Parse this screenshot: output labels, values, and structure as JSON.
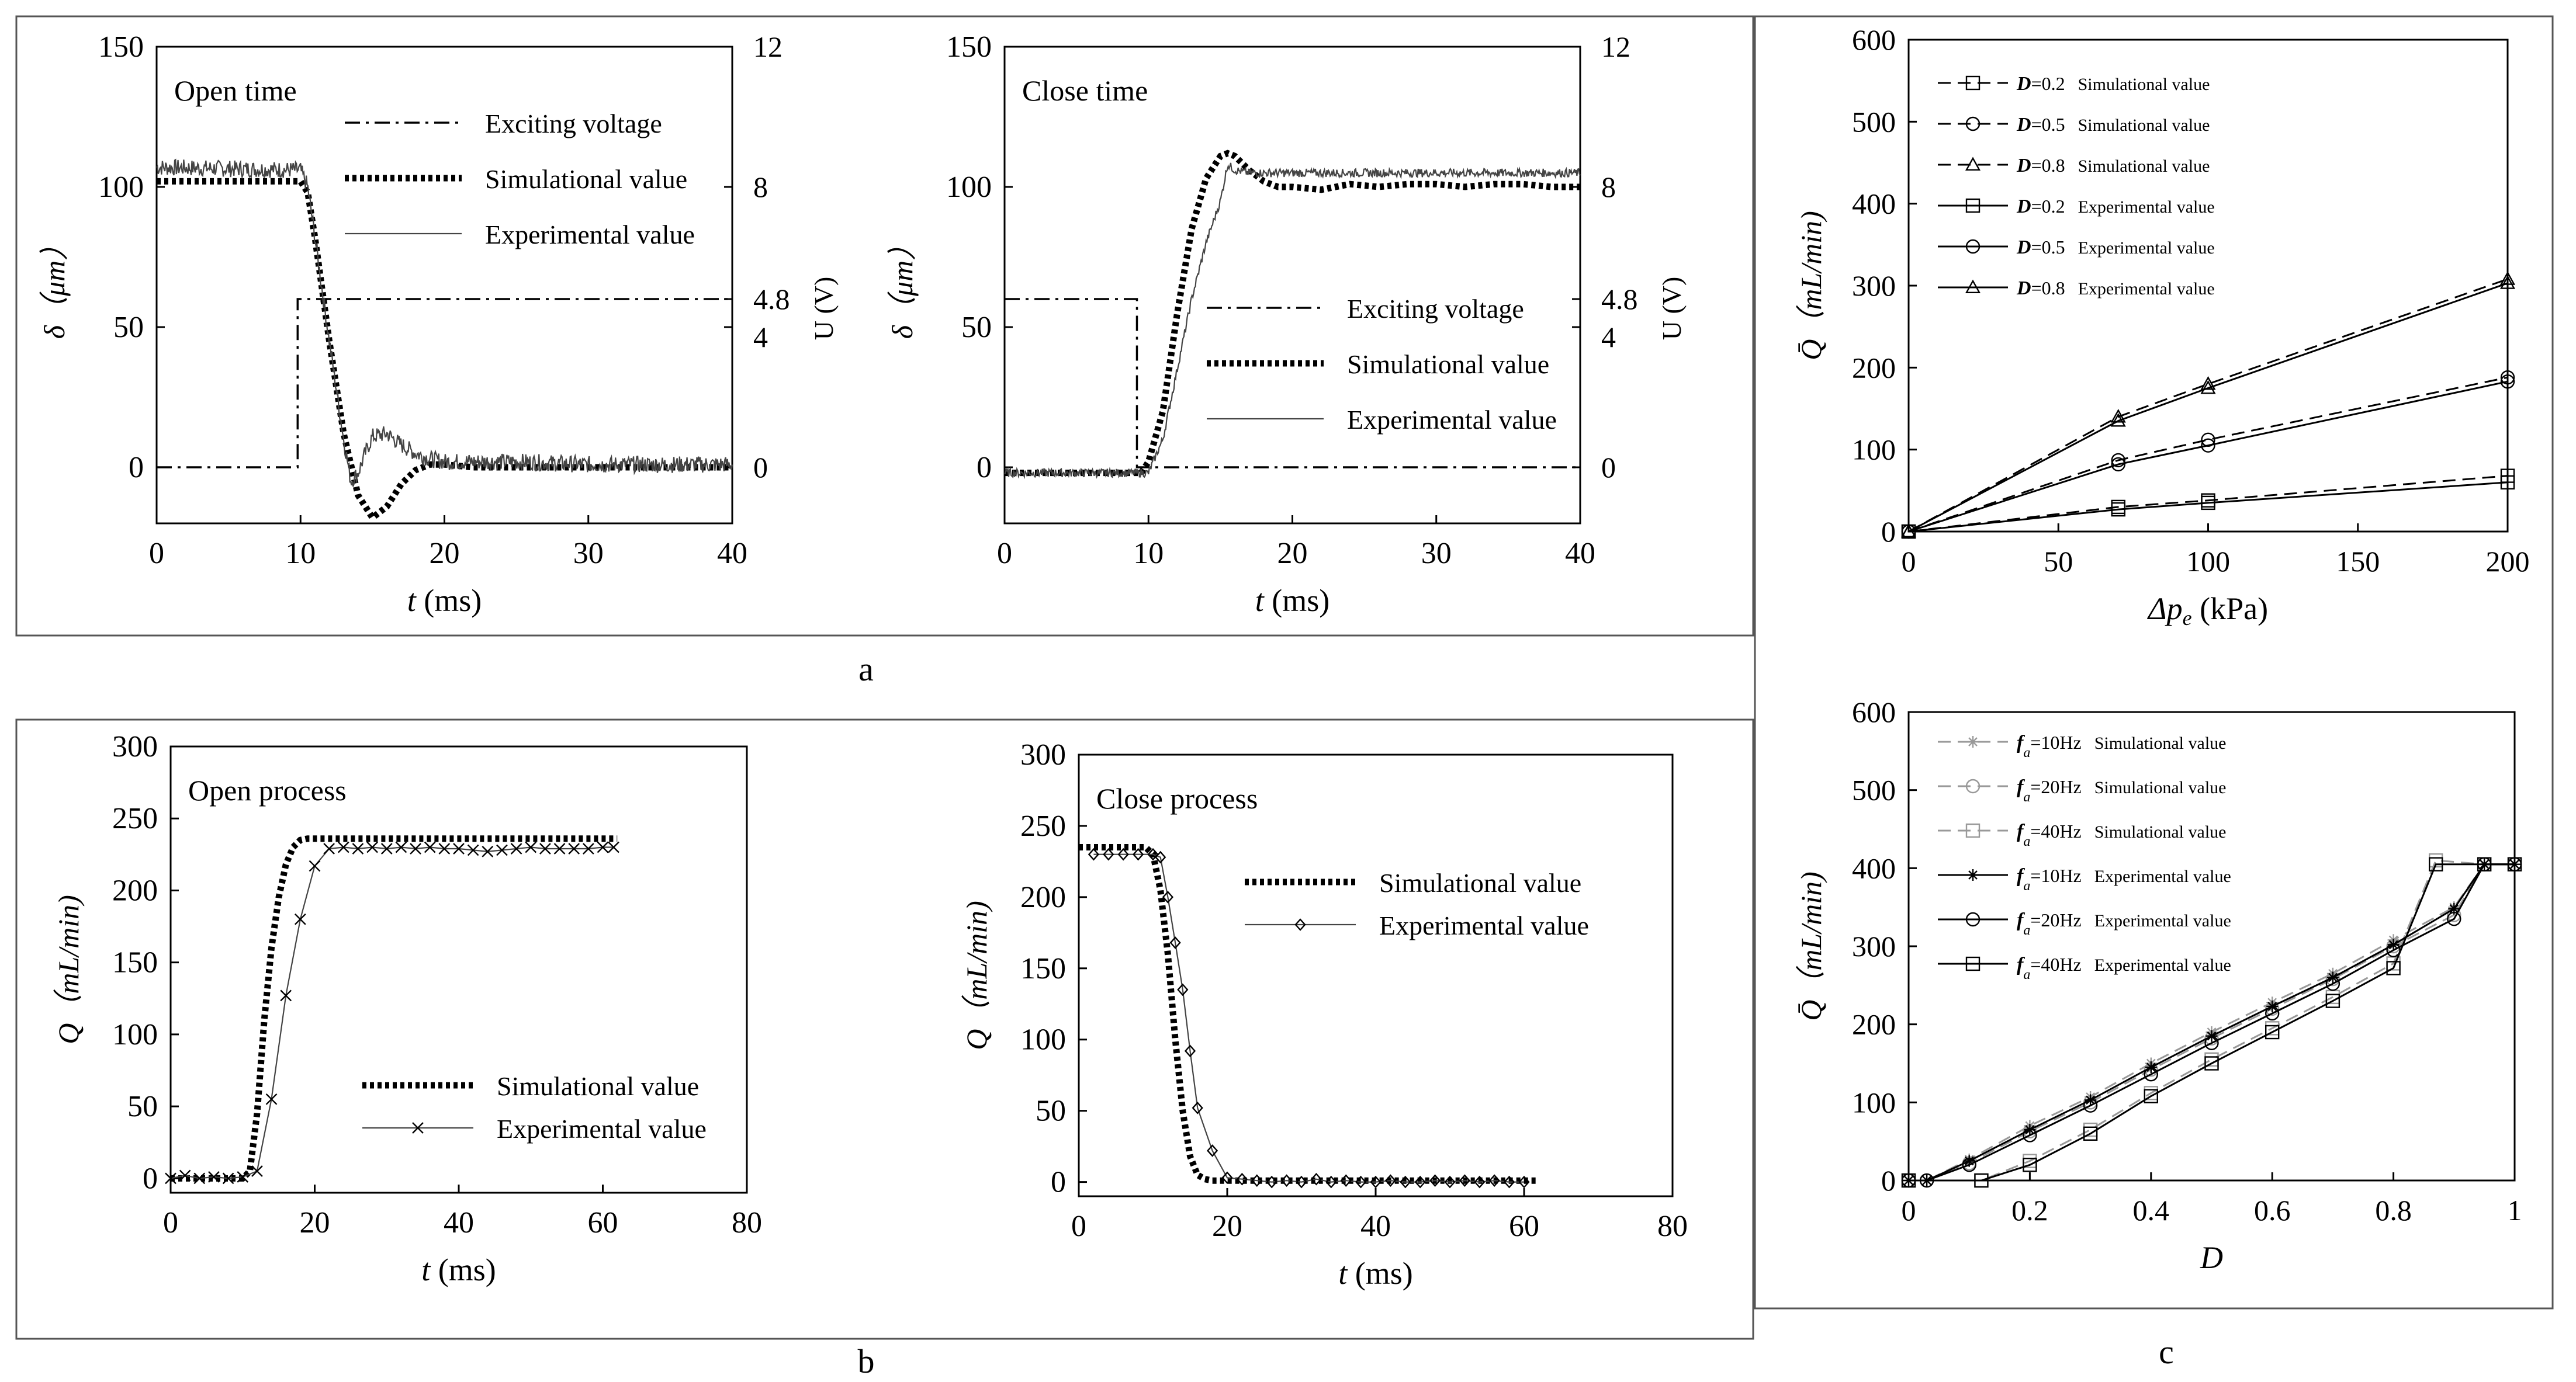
{
  "panel_labels": {
    "a": "a",
    "b": "b",
    "c": "c"
  },
  "colors": {
    "ink": "#000000",
    "light": "#999999",
    "frame": "#555555"
  },
  "chart_data": [
    {
      "id": "a1",
      "type": "line",
      "title": "Open time",
      "xlabel_main": "t",
      "xlabel_unit": " (ms)",
      "ylabel": "δ（μm）",
      "y2label": "U (V)",
      "xlim": [
        0,
        40
      ],
      "ylim": [
        -20,
        150
      ],
      "y2lim": [
        -1.6,
        12
      ],
      "xticks": [
        0,
        10,
        20,
        30,
        40
      ],
      "yticks": [
        0,
        50,
        100,
        150
      ],
      "y2ticks": [
        0,
        4,
        4.8,
        8,
        12
      ],
      "xtick_labels": [
        "0",
        "10",
        "20",
        "30",
        "40"
      ],
      "ytick_labels": [
        "0",
        "50",
        "100",
        "150"
      ],
      "y2tick_labels": [
        "0",
        "4",
        "4.8",
        "8",
        "12"
      ],
      "legend": [
        "Exciting voltage",
        "Simulational value",
        "Experimental value"
      ],
      "series": [
        {
          "name": "Exciting voltage",
          "axis": "y2",
          "style": "dashdot",
          "x": [
            0,
            9.8,
            9.8,
            10.0,
            40
          ],
          "y": [
            0,
            0,
            4.8,
            4.8,
            4.8
          ]
        },
        {
          "name": "Simulational value",
          "axis": "y",
          "style": "dotted-thick",
          "x": [
            0,
            10,
            10.5,
            11,
            12,
            13,
            14,
            15,
            16,
            17,
            18,
            19,
            20,
            22,
            25,
            30,
            40
          ],
          "y": [
            102,
            102,
            98,
            82,
            45,
            12,
            -10,
            -18,
            -14,
            -6,
            -1,
            1,
            1,
            0,
            0,
            0,
            0
          ]
        },
        {
          "name": "Experimental value",
          "axis": "y",
          "style": "thin",
          "x": [
            0,
            10,
            10.5,
            11,
            12,
            13,
            13.5,
            14,
            14.5,
            15,
            16,
            17,
            18,
            19,
            20,
            22,
            25,
            30,
            35,
            40
          ],
          "y": [
            107,
            106,
            100,
            82,
            45,
            10,
            -5,
            -2,
            5,
            11,
            12,
            8,
            5,
            3,
            2,
            2,
            2,
            1,
            1,
            1
          ],
          "noise": 3
        }
      ]
    },
    {
      "id": "a2",
      "type": "line",
      "title": "Close time",
      "xlabel_main": "t",
      "xlabel_unit": " (ms)",
      "ylabel": "δ（μm）",
      "y2label": "U (V)",
      "xlim": [
        0,
        40
      ],
      "ylim": [
        -20,
        150
      ],
      "y2lim": [
        -1.6,
        12
      ],
      "xticks": [
        0,
        10,
        20,
        30,
        40
      ],
      "yticks": [
        0,
        50,
        100,
        150
      ],
      "y2ticks": [
        0,
        4,
        4.8,
        8,
        12
      ],
      "xtick_labels": [
        "0",
        "10",
        "20",
        "30",
        "40"
      ],
      "ytick_labels": [
        "0",
        "50",
        "100",
        "150"
      ],
      "y2tick_labels": [
        "0",
        "4",
        "4.8",
        "8",
        "12"
      ],
      "legend": [
        "Exciting voltage",
        "Simulational value",
        "Experimental value"
      ],
      "series": [
        {
          "name": "Exciting voltage",
          "axis": "y2",
          "style": "dashdot",
          "x": [
            0,
            9.2,
            9.2,
            9.4,
            40
          ],
          "y": [
            4.8,
            4.8,
            0,
            0,
            0
          ]
        },
        {
          "name": "Simulational value",
          "axis": "y",
          "style": "dotted-thick",
          "x": [
            0,
            9.5,
            10,
            11,
            12,
            13,
            14,
            15,
            15.5,
            16,
            17,
            18,
            19,
            20,
            22,
            24,
            26,
            28,
            30,
            32,
            34,
            36,
            38,
            40
          ],
          "y": [
            -2,
            -2,
            2,
            20,
            55,
            85,
            103,
            111,
            112,
            111,
            106,
            102,
            100,
            100,
            99,
            101,
            100,
            101,
            101,
            100,
            101,
            101,
            100,
            100
          ]
        },
        {
          "name": "Experimental value",
          "axis": "y",
          "style": "thin",
          "x": [
            0,
            10,
            11,
            12,
            13,
            14,
            15,
            15.5,
            16,
            17,
            20,
            25,
            30,
            35,
            40
          ],
          "y": [
            -2,
            -2,
            10,
            35,
            60,
            80,
            95,
            108,
            106,
            105,
            105,
            105,
            105,
            105,
            105
          ],
          "noise": 1.5
        }
      ]
    },
    {
      "id": "b1",
      "type": "line",
      "title": "Open process",
      "xlabel_main": "t",
      "xlabel_unit": " (ms)",
      "ylabel": "Q（mL/min)",
      "xlim": [
        0,
        80
      ],
      "ylim": [
        -10,
        300
      ],
      "xticks": [
        0,
        20,
        40,
        60,
        80
      ],
      "yticks": [
        0,
        50,
        100,
        150,
        200,
        250,
        300
      ],
      "xtick_labels": [
        "0",
        "20",
        "40",
        "60",
        "80"
      ],
      "ytick_labels": [
        "0",
        "50",
        "100",
        "150",
        "200",
        "250",
        "300"
      ],
      "legend": [
        "Simulational value",
        "Experimental value"
      ],
      "series": [
        {
          "name": "Simulational value",
          "style": "dotted-thick",
          "x": [
            0,
            10,
            11,
            12,
            13,
            14,
            15,
            16,
            17,
            18,
            19,
            20,
            25,
            30,
            62
          ],
          "y": [
            0,
            0,
            5,
            45,
            110,
            160,
            195,
            218,
            230,
            235,
            236,
            236,
            236,
            236,
            236
          ]
        },
        {
          "name": "Experimental value",
          "style": "thin-x",
          "x": [
            0,
            2,
            4,
            6,
            8,
            10,
            12,
            14,
            16,
            18,
            20,
            22,
            24,
            26,
            28,
            30,
            32,
            34,
            36,
            38,
            40,
            42,
            44,
            46,
            48,
            50,
            52,
            54,
            56,
            58,
            60,
            61.5
          ],
          "y": [
            0,
            2,
            0,
            1,
            0,
            1,
            5,
            55,
            127,
            180,
            217,
            229,
            230,
            229,
            230,
            229,
            230,
            229,
            230,
            229,
            229,
            228,
            227,
            228,
            229,
            230,
            229,
            229,
            229,
            229,
            230,
            230
          ]
        }
      ]
    },
    {
      "id": "b2",
      "type": "line",
      "title": "Close process",
      "xlabel_main": "t",
      "xlabel_unit": " (ms)",
      "ylabel": "Q（mL/min)",
      "xlim": [
        0,
        80
      ],
      "ylim": [
        -10,
        300
      ],
      "xticks": [
        0,
        20,
        40,
        60,
        80
      ],
      "yticks": [
        0,
        50,
        100,
        150,
        200,
        250,
        300
      ],
      "xtick_labels": [
        "0",
        "20",
        "40",
        "60",
        "80"
      ],
      "ytick_labels": [
        "0",
        "50",
        "100",
        "150",
        "200",
        "250",
        "300"
      ],
      "legend": [
        "Simulational value",
        "Experimental value"
      ],
      "series": [
        {
          "name": "Simulational value",
          "style": "dotted-thick",
          "x": [
            0,
            9,
            10,
            11,
            12,
            13,
            14,
            15,
            16,
            17,
            18,
            20,
            25,
            62
          ],
          "y": [
            235,
            235,
            230,
            205,
            160,
            100,
            50,
            18,
            5,
            2,
            1,
            1,
            1,
            1
          ]
        },
        {
          "name": "Experimental value",
          "style": "thin-diamond",
          "x": [
            2,
            4,
            6,
            8,
            10,
            11,
            12,
            13,
            14,
            15,
            16,
            18,
            20,
            22,
            24,
            26,
            28,
            30,
            32,
            34,
            36,
            38,
            40,
            42,
            44,
            46,
            48,
            50,
            52,
            54,
            56,
            58,
            60
          ],
          "y": [
            230,
            230,
            230,
            230,
            230,
            228,
            200,
            168,
            135,
            92,
            52,
            22,
            3,
            2,
            1,
            0,
            1,
            0,
            2,
            0,
            1,
            0,
            0,
            1,
            0,
            0,
            1,
            0,
            1,
            0,
            1,
            0,
            0
          ]
        }
      ]
    },
    {
      "id": "c1",
      "type": "line",
      "xlabel_main": "Δp",
      "xlabel_sub": "e",
      "xlabel_unit": " (kPa)",
      "ylabel": "Q̄（mL/min)",
      "xlim": [
        0,
        200
      ],
      "ylim": [
        0,
        600
      ],
      "xticks": [
        0,
        50,
        100,
        150,
        200
      ],
      "yticks": [
        0,
        100,
        200,
        300,
        400,
        500,
        600
      ],
      "xtick_labels": [
        "0",
        "50",
        "100",
        "150",
        "200"
      ],
      "ytick_labels": [
        "0",
        "100",
        "200",
        "300",
        "400",
        "500",
        "600"
      ],
      "legend": [
        {
          "sym": "D",
          "val": "=0.2",
          "desc": "Simulational value"
        },
        {
          "sym": "D",
          "val": "=0.5",
          "desc": "Simulational value"
        },
        {
          "sym": "D",
          "val": "=0.8",
          "desc": "Simulational value"
        },
        {
          "sym": "D",
          "val": "=0.2",
          "desc": "Experimental value"
        },
        {
          "sym": "D",
          "val": "=0.5",
          "desc": "Experimental value"
        },
        {
          "sym": "D",
          "val": "=0.8",
          "desc": "Experimental value"
        }
      ],
      "series": [
        {
          "name": "D=0.2 Simulational value",
          "style": "dashed",
          "marker": "square",
          "x": [
            0,
            70,
            100,
            200
          ],
          "y": [
            0,
            30,
            38,
            68
          ]
        },
        {
          "name": "D=0.5 Simulational value",
          "style": "dashed",
          "marker": "circle",
          "x": [
            0,
            70,
            100,
            200
          ],
          "y": [
            0,
            87,
            112,
            188
          ]
        },
        {
          "name": "D=0.8 Simulational value",
          "style": "dashed",
          "marker": "triangle",
          "x": [
            0,
            70,
            100,
            200
          ],
          "y": [
            0,
            140,
            180,
            308
          ]
        },
        {
          "name": "D=0.2 Experimental value",
          "style": "solid",
          "marker": "square",
          "x": [
            0,
            70,
            100,
            200
          ],
          "y": [
            0,
            27,
            35,
            60
          ]
        },
        {
          "name": "D=0.5 Experimental value",
          "style": "solid",
          "marker": "circle",
          "x": [
            0,
            70,
            100,
            200
          ],
          "y": [
            0,
            82,
            105,
            183
          ]
        },
        {
          "name": "D=0.8 Experimental value",
          "style": "solid",
          "marker": "triangle",
          "x": [
            0,
            70,
            100,
            200
          ],
          "y": [
            0,
            135,
            175,
            303
          ]
        }
      ]
    },
    {
      "id": "c2",
      "type": "line",
      "xlabel_main": "D",
      "ylabel": "Q̄（mL/min)",
      "xlim": [
        0,
        1
      ],
      "ylim": [
        0,
        600
      ],
      "xticks": [
        0,
        0.2,
        0.4,
        0.6,
        0.8,
        1
      ],
      "yticks": [
        0,
        100,
        200,
        300,
        400,
        500,
        600
      ],
      "xtick_labels": [
        "0",
        "0.2",
        "0.4",
        "0.6",
        "0.8",
        "1"
      ],
      "ytick_labels": [
        "0",
        "100",
        "200",
        "300",
        "400",
        "500",
        "600"
      ],
      "legend": [
        {
          "sym": "f",
          "sub": "a",
          "val": "=10Hz",
          "desc": "Simulational value"
        },
        {
          "sym": "f",
          "sub": "a",
          "val": "=20Hz",
          "desc": "Simulational value"
        },
        {
          "sym": "f",
          "sub": "a",
          "val": "=40Hz",
          "desc": "Simulational value"
        },
        {
          "sym": "f",
          "sub": "a",
          "val": "=10Hz",
          "desc": "Experimental value"
        },
        {
          "sym": "f",
          "sub": "a",
          "val": "=20Hz",
          "desc": "Experimental value"
        },
        {
          "sym": "f",
          "sub": "a",
          "val": "=40Hz",
          "desc": "Experimental value"
        }
      ],
      "series": [
        {
          "name": "fa=10Hz Simulational value",
          "style": "dashed",
          "marker": "star",
          "color": "light",
          "x": [
            0,
            0.03,
            0.1,
            0.2,
            0.3,
            0.4,
            0.5,
            0.6,
            0.7,
            0.8,
            0.9,
            0.95,
            1
          ],
          "y": [
            0,
            0,
            27,
            70,
            107,
            150,
            190,
            228,
            265,
            308,
            350,
            405,
            405
          ]
        },
        {
          "name": "fa=20Hz Simulational value",
          "style": "dashed",
          "marker": "circle",
          "color": "light",
          "x": [
            0,
            0.03,
            0.1,
            0.2,
            0.3,
            0.4,
            0.5,
            0.6,
            0.7,
            0.8,
            0.9,
            0.95,
            1
          ],
          "y": [
            0,
            0,
            22,
            63,
            100,
            142,
            182,
            220,
            258,
            300,
            340,
            405,
            405
          ]
        },
        {
          "name": "fa=40Hz Simulational value",
          "style": "dashed",
          "marker": "square",
          "color": "light",
          "x": [
            0,
            0.12,
            0.2,
            0.3,
            0.4,
            0.5,
            0.6,
            0.7,
            0.8,
            0.87,
            0.95,
            1
          ],
          "y": [
            0,
            0,
            25,
            65,
            112,
            155,
            195,
            235,
            278,
            410,
            405,
            405
          ]
        },
        {
          "name": "fa=10Hz Experimental value",
          "style": "solid",
          "marker": "star",
          "color": "ink",
          "x": [
            0,
            0.03,
            0.1,
            0.2,
            0.3,
            0.4,
            0.5,
            0.6,
            0.7,
            0.8,
            0.9,
            0.95,
            1
          ],
          "y": [
            0,
            0,
            25,
            65,
            103,
            145,
            185,
            223,
            260,
            302,
            348,
            405,
            405
          ]
        },
        {
          "name": "fa=20Hz Experimental value",
          "style": "solid",
          "marker": "circle",
          "color": "ink",
          "x": [
            0,
            0.03,
            0.1,
            0.2,
            0.3,
            0.4,
            0.5,
            0.6,
            0.7,
            0.8,
            0.9,
            0.95,
            1
          ],
          "y": [
            0,
            0,
            20,
            58,
            96,
            136,
            176,
            214,
            252,
            295,
            335,
            405,
            405
          ]
        },
        {
          "name": "fa=40Hz Experimental value",
          "style": "solid",
          "marker": "square",
          "color": "ink",
          "x": [
            0,
            0.12,
            0.2,
            0.3,
            0.4,
            0.5,
            0.6,
            0.7,
            0.8,
            0.87,
            0.95,
            1
          ],
          "y": [
            0,
            0,
            20,
            60,
            108,
            150,
            190,
            230,
            272,
            405,
            405,
            405
          ]
        }
      ]
    }
  ]
}
